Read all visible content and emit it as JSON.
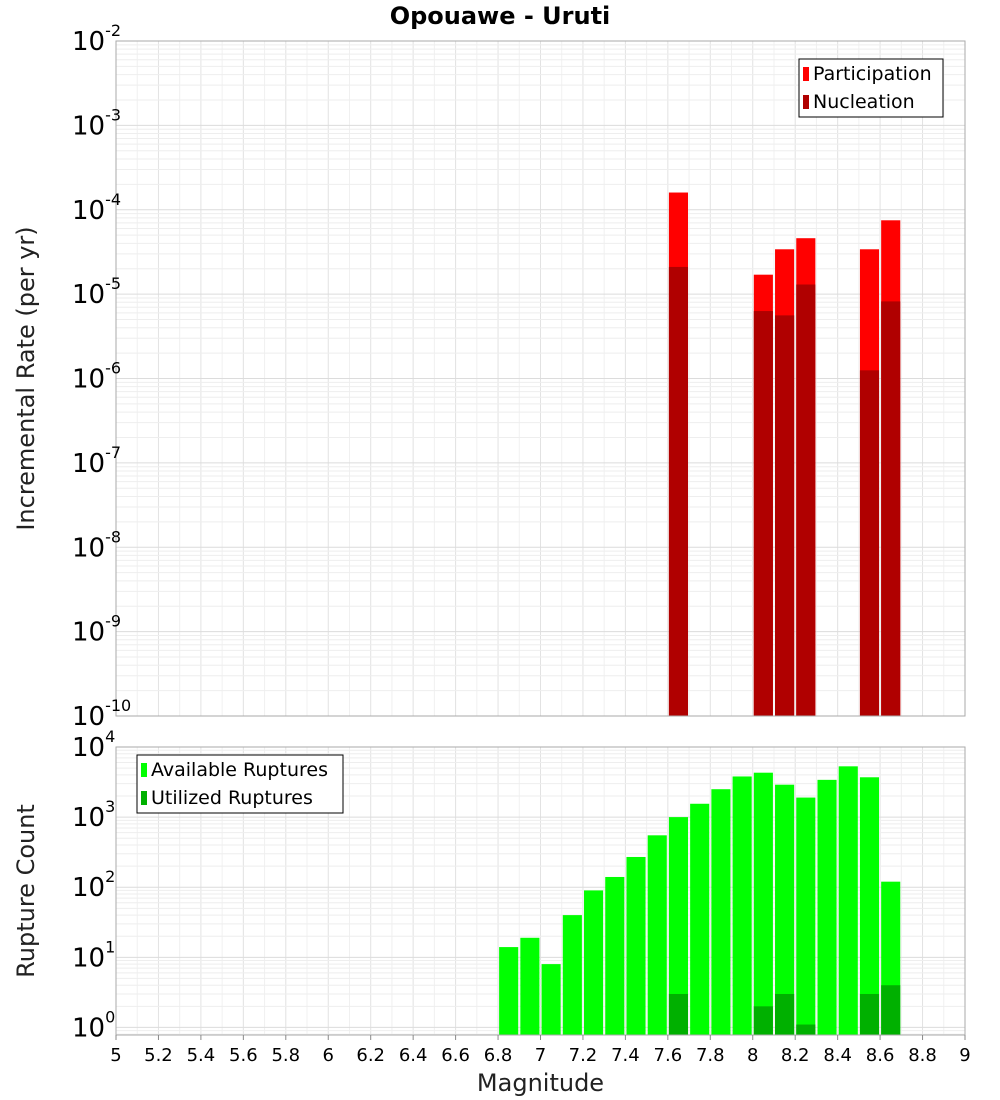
{
  "chart_data": [
    {
      "type": "bar",
      "title": "Opouawe - Uruti",
      "xlabel": "",
      "ylabel": "Incremental Rate (per yr)",
      "xlim": [
        5,
        9
      ],
      "ylim": [
        1e-10,
        0.01
      ],
      "yscale": "log",
      "yticks": [
        {
          "base": "10",
          "exp": "-10"
        },
        {
          "base": "10",
          "exp": "-9"
        },
        {
          "base": "10",
          "exp": "-8"
        },
        {
          "base": "10",
          "exp": "-7"
        },
        {
          "base": "10",
          "exp": "-6"
        },
        {
          "base": "10",
          "exp": "-5"
        },
        {
          "base": "10",
          "exp": "-4"
        },
        {
          "base": "10",
          "exp": "-3"
        },
        {
          "base": "10",
          "exp": "-2"
        }
      ],
      "grid": true,
      "legend_position": "top-right",
      "bar_width": 0.09,
      "series": [
        {
          "name": "Participation",
          "color": "#ff0000",
          "x": [
            7.65,
            8.05,
            8.15,
            8.25,
            8.55,
            8.65
          ],
          "values": [
            0.00016,
            1.7e-05,
            3.4e-05,
            4.6e-05,
            3.4e-05,
            7.5e-05
          ]
        },
        {
          "name": "Nucleation",
          "color": "#b00000",
          "x": [
            7.65,
            8.05,
            8.15,
            8.25,
            8.55,
            8.65
          ],
          "values": [
            2.1e-05,
            6.3e-06,
            5.6e-06,
            1.3e-05,
            1.25e-06,
            8.2e-06
          ]
        }
      ]
    },
    {
      "type": "bar",
      "title": "",
      "xlabel": "Magnitude",
      "ylabel": "Rupture Count",
      "xlim": [
        5,
        9
      ],
      "ylim": [
        0.78,
        10000
      ],
      "yscale": "log",
      "xticks": [
        "5",
        "5.2",
        "5.4",
        "5.6",
        "5.8",
        "6",
        "6.2",
        "6.4",
        "6.6",
        "6.8",
        "7",
        "7.2",
        "7.4",
        "7.6",
        "7.8",
        "8",
        "8.2",
        "8.4",
        "8.6",
        "8.8",
        "9"
      ],
      "yticks": [
        {
          "base": "10",
          "exp": "0"
        },
        {
          "base": "10",
          "exp": "1"
        },
        {
          "base": "10",
          "exp": "2"
        },
        {
          "base": "10",
          "exp": "3"
        },
        {
          "base": "10",
          "exp": "4"
        }
      ],
      "grid": true,
      "legend_position": "top-left",
      "bar_width": 0.09,
      "series": [
        {
          "name": "Available Ruptures",
          "color": "#00ff00",
          "x": [
            6.85,
            6.95,
            7.05,
            7.15,
            7.25,
            7.35,
            7.45,
            7.55,
            7.65,
            7.75,
            7.85,
            7.95,
            8.05,
            8.15,
            8.25,
            8.35,
            8.45,
            8.55,
            8.65
          ],
          "values": [
            14,
            19,
            8,
            40,
            90,
            140,
            270,
            550,
            1000,
            1550,
            2500,
            3800,
            4300,
            2900,
            1900,
            3400,
            5300,
            3700,
            120
          ]
        },
        {
          "name": "Utilized Ruptures",
          "color": "#00b000",
          "x": [
            7.65,
            8.05,
            8.15,
            8.25,
            8.55,
            8.65
          ],
          "values": [
            3,
            2,
            3,
            1.1,
            3,
            4
          ]
        }
      ]
    }
  ]
}
